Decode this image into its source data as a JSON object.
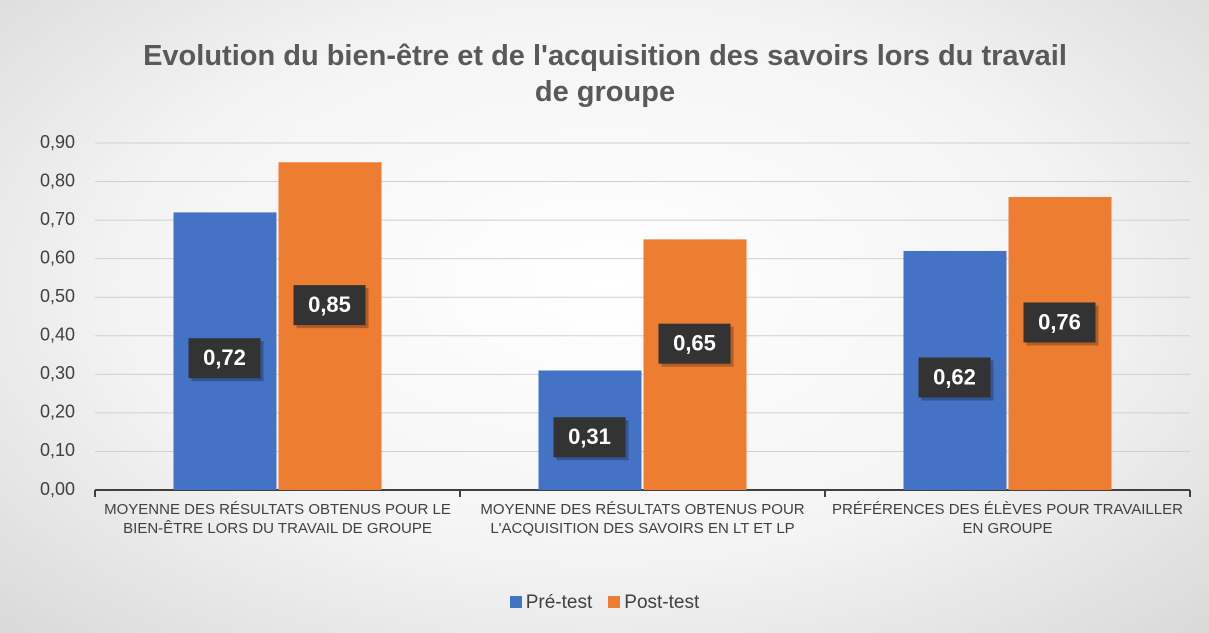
{
  "chart_data": {
    "type": "bar",
    "title": "Evolution du bien-être et de l'acquisition des savoirs lors du travail de groupe",
    "categories": [
      "MOYENNE DES RÉSULTATS OBTENUS POUR LE BIEN-ÊTRE LORS DU TRAVAIL DE GROUPE",
      "MOYENNE DES RÉSULTATS OBTENUS POUR L'ACQUISITION DES SAVOIRS EN LT ET LP",
      "PRÉFÉRENCES DES ÉLÈVES POUR TRAVAILLER EN GROUPE"
    ],
    "series": [
      {
        "name": "Pré-test",
        "color": "#4472c4",
        "values": [
          0.72,
          0.31,
          0.62
        ],
        "value_labels": [
          "0,72",
          "0,31",
          "0,62"
        ]
      },
      {
        "name": "Post-test",
        "color": "#ed7d31",
        "values": [
          0.85,
          0.65,
          0.76
        ],
        "value_labels": [
          "0,85",
          "0,65",
          "0,76"
        ]
      }
    ],
    "ylim": [
      0,
      0.9
    ],
    "yticks": [
      {
        "value": 0,
        "label": "0,00"
      },
      {
        "value": 0.1,
        "label": "0,10"
      },
      {
        "value": 0.2,
        "label": "0,20"
      },
      {
        "value": 0.3,
        "label": "0,30"
      },
      {
        "value": 0.4,
        "label": "0,40"
      },
      {
        "value": 0.5,
        "label": "0,50"
      },
      {
        "value": 0.6,
        "label": "0,60"
      },
      {
        "value": 0.7,
        "label": "0,70"
      },
      {
        "value": 0.8,
        "label": "0,80"
      },
      {
        "value": 0.9,
        "label": "0,90"
      }
    ],
    "grid": true,
    "legend": "bottom"
  }
}
